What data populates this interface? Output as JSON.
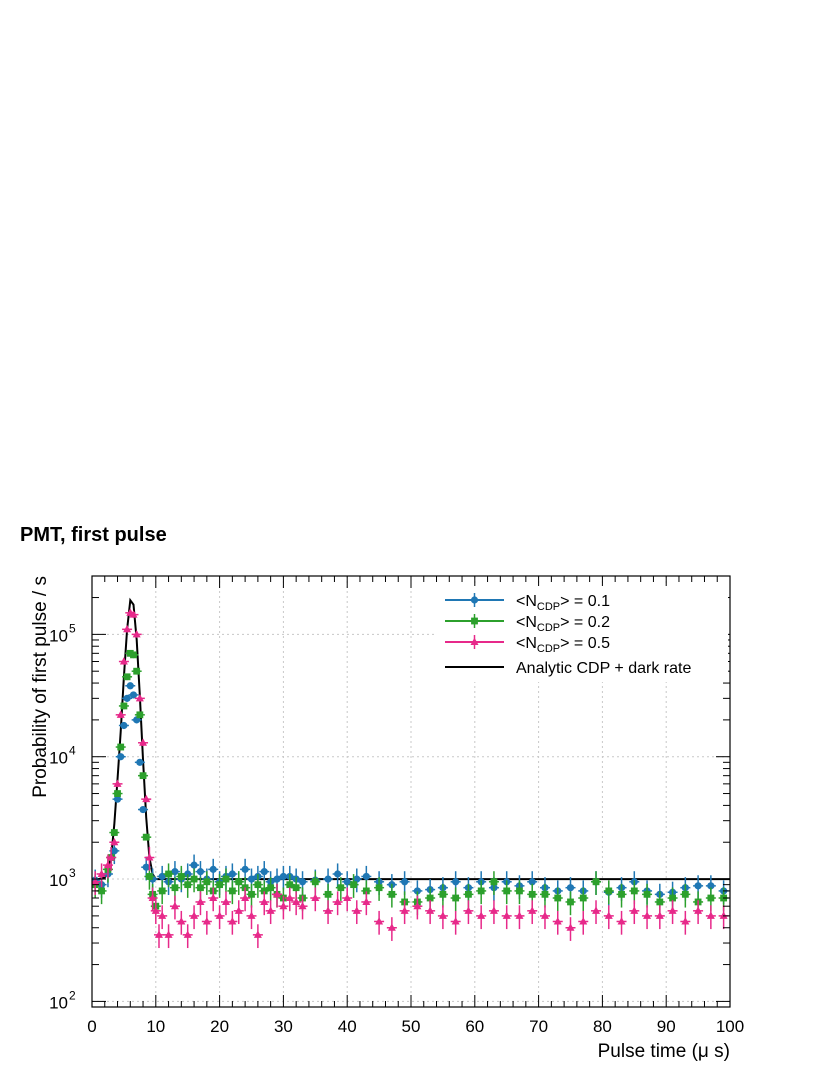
{
  "title": "PMT, first pulse",
  "chart_data": {
    "type": "scatter",
    "xlabel": "Pulse time (μ s)",
    "ylabel": "Probability of first pulse / s",
    "xlim": [
      0,
      100
    ],
    "ylim": [
      90,
      300000
    ],
    "yscale": "log",
    "x_ticks": [
      "0",
      "10",
      "20",
      "30",
      "40",
      "50",
      "60",
      "70",
      "80",
      "90",
      "100"
    ],
    "y_ticks": [
      {
        "base": "10",
        "exp": "2",
        "value": 100
      },
      {
        "base": "10",
        "exp": "3",
        "value": 1000
      },
      {
        "base": "10",
        "exp": "4",
        "value": 10000
      },
      {
        "base": "10",
        "exp": "5",
        "value": 100000
      }
    ],
    "grid": true,
    "legend_position": "top-right",
    "series": [
      {
        "legend_prefix": "<N",
        "legend_sub": "CDP",
        "legend_suffix": "> = 0.1",
        "color": "#1f77b4",
        "marker": "circle",
        "points": [
          [
            0.5,
            980
          ],
          [
            1.5,
            900
          ],
          [
            2.5,
            1100
          ],
          [
            3.5,
            1700
          ],
          [
            4.0,
            4500
          ],
          [
            4.5,
            10000
          ],
          [
            5.0,
            18000
          ],
          [
            5.5,
            30000
          ],
          [
            6.0,
            38000
          ],
          [
            6.5,
            32000
          ],
          [
            7.0,
            20000
          ],
          [
            7.5,
            9000
          ],
          [
            8.0,
            3700
          ],
          [
            8.5,
            1250
          ],
          [
            9.5,
            1000
          ],
          [
            11.0,
            1050
          ],
          [
            12.0,
            950
          ],
          [
            13.0,
            1150
          ],
          [
            14.0,
            1000
          ],
          [
            15.0,
            1100
          ],
          [
            16.0,
            1300
          ],
          [
            17.0,
            1150
          ],
          [
            18.0,
            1000
          ],
          [
            19.0,
            1200
          ],
          [
            20.0,
            950
          ],
          [
            21.0,
            1050
          ],
          [
            22.0,
            1100
          ],
          [
            23.0,
            950
          ],
          [
            24.0,
            1200
          ],
          [
            25.0,
            1000
          ],
          [
            26.0,
            1050
          ],
          [
            27.0,
            1150
          ],
          [
            28.0,
            950
          ],
          [
            29.0,
            1000
          ],
          [
            30.0,
            1050
          ],
          [
            31.0,
            1050
          ],
          [
            32.0,
            1000
          ],
          [
            33.0,
            950
          ],
          [
            35.0,
            980
          ],
          [
            37.0,
            1000
          ],
          [
            38.5,
            1100
          ],
          [
            40.0,
            950
          ],
          [
            41.5,
            1000
          ],
          [
            43.0,
            1050
          ],
          [
            45.0,
            950
          ],
          [
            47.0,
            900
          ],
          [
            49.0,
            950
          ],
          [
            51.0,
            800
          ],
          [
            53.0,
            820
          ],
          [
            55.0,
            850
          ],
          [
            57.0,
            950
          ],
          [
            59.0,
            850
          ],
          [
            61.0,
            950
          ],
          [
            63.0,
            850
          ],
          [
            65.0,
            950
          ],
          [
            67.0,
            880
          ],
          [
            69.0,
            950
          ],
          [
            71.0,
            850
          ],
          [
            73.0,
            800
          ],
          [
            75.0,
            850
          ],
          [
            77.0,
            800
          ],
          [
            79.0,
            950
          ],
          [
            81.0,
            780
          ],
          [
            83.0,
            850
          ],
          [
            85.0,
            950
          ],
          [
            87.0,
            800
          ],
          [
            89.0,
            750
          ],
          [
            91.0,
            780
          ],
          [
            93.0,
            850
          ],
          [
            95.0,
            880
          ],
          [
            97.0,
            880
          ],
          [
            99.0,
            800
          ]
        ]
      },
      {
        "legend_prefix": "<N",
        "legend_sub": "CDP",
        "legend_suffix": "> = 0.2",
        "color": "#2ca02c",
        "marker": "square",
        "points": [
          [
            0.5,
            900
          ],
          [
            1.5,
            800
          ],
          [
            2.5,
            1200
          ],
          [
            3.0,
            1500
          ],
          [
            3.5,
            2400
          ],
          [
            4.0,
            5000
          ],
          [
            4.5,
            12000
          ],
          [
            5.0,
            26000
          ],
          [
            5.5,
            45000
          ],
          [
            6.0,
            70000
          ],
          [
            6.5,
            68000
          ],
          [
            7.0,
            50000
          ],
          [
            7.5,
            22000
          ],
          [
            8.0,
            7000
          ],
          [
            8.5,
            2200
          ],
          [
            9.0,
            1050
          ],
          [
            9.5,
            750
          ],
          [
            10.0,
            600
          ],
          [
            11.0,
            800
          ],
          [
            12.0,
            1100
          ],
          [
            13.0,
            850
          ],
          [
            14.0,
            1050
          ],
          [
            15.0,
            900
          ],
          [
            16.0,
            1000
          ],
          [
            17.0,
            850
          ],
          [
            18.0,
            950
          ],
          [
            19.0,
            800
          ],
          [
            20.0,
            900
          ],
          [
            21.0,
            1000
          ],
          [
            22.0,
            800
          ],
          [
            23.0,
            950
          ],
          [
            24.0,
            850
          ],
          [
            25.0,
            750
          ],
          [
            26.0,
            900
          ],
          [
            27.0,
            800
          ],
          [
            28.0,
            850
          ],
          [
            29.0,
            750
          ],
          [
            30.0,
            700
          ],
          [
            31.0,
            900
          ],
          [
            32.0,
            850
          ],
          [
            33.0,
            700
          ],
          [
            35.0,
            950
          ],
          [
            37.0,
            750
          ],
          [
            39.0,
            850
          ],
          [
            41.0,
            900
          ],
          [
            43.0,
            800
          ],
          [
            45.0,
            850
          ],
          [
            47.0,
            750
          ],
          [
            49.0,
            650
          ],
          [
            51.0,
            650
          ],
          [
            53.0,
            700
          ],
          [
            55.0,
            750
          ],
          [
            57.0,
            700
          ],
          [
            59.0,
            750
          ],
          [
            61.0,
            800
          ],
          [
            63.0,
            950
          ],
          [
            65.0,
            800
          ],
          [
            67.0,
            800
          ],
          [
            69.0,
            750
          ],
          [
            71.0,
            750
          ],
          [
            73.0,
            700
          ],
          [
            75.0,
            650
          ],
          [
            77.0,
            700
          ],
          [
            79.0,
            950
          ],
          [
            81.0,
            800
          ],
          [
            83.0,
            750
          ],
          [
            85.0,
            800
          ],
          [
            87.0,
            750
          ],
          [
            89.0,
            650
          ],
          [
            91.0,
            700
          ],
          [
            93.0,
            750
          ],
          [
            95.0,
            650
          ],
          [
            97.0,
            700
          ],
          [
            99.0,
            700
          ]
        ]
      },
      {
        "legend_prefix": "<N",
        "legend_sub": "CDP",
        "legend_suffix": "> = 0.5",
        "color": "#e7298a",
        "marker": "triangle",
        "points": [
          [
            0.5,
            950
          ],
          [
            1.5,
            1100
          ],
          [
            2.5,
            1300
          ],
          [
            3.0,
            1500
          ],
          [
            3.5,
            2000
          ],
          [
            4.0,
            6000
          ],
          [
            4.5,
            22000
          ],
          [
            5.0,
            60000
          ],
          [
            5.5,
            110000
          ],
          [
            6.0,
            150000
          ],
          [
            6.5,
            145000
          ],
          [
            7.0,
            100000
          ],
          [
            7.5,
            30000
          ],
          [
            8.0,
            13000
          ],
          [
            8.5,
            4500
          ],
          [
            9.0,
            1500
          ],
          [
            9.5,
            700
          ],
          [
            10.0,
            550
          ],
          [
            10.5,
            350
          ],
          [
            11.0,
            500
          ],
          [
            12.0,
            350
          ],
          [
            13.0,
            600
          ],
          [
            14.0,
            450
          ],
          [
            15.0,
            350
          ],
          [
            16.0,
            500
          ],
          [
            17.0,
            650
          ],
          [
            18.0,
            450
          ],
          [
            19.0,
            700
          ],
          [
            20.0,
            500
          ],
          [
            21.0,
            650
          ],
          [
            22.0,
            450
          ],
          [
            23.0,
            550
          ],
          [
            24.0,
            700
          ],
          [
            25.0,
            500
          ],
          [
            26.0,
            350
          ],
          [
            27.0,
            650
          ],
          [
            28.0,
            550
          ],
          [
            29.0,
            750
          ],
          [
            30.0,
            600
          ],
          [
            31.0,
            700
          ],
          [
            32.0,
            650
          ],
          [
            33.0,
            600
          ],
          [
            35.0,
            700
          ],
          [
            37.0,
            550
          ],
          [
            38.5,
            650
          ],
          [
            40.0,
            700
          ],
          [
            41.5,
            550
          ],
          [
            43.0,
            650
          ],
          [
            45.0,
            450
          ],
          [
            47.0,
            400
          ],
          [
            49.0,
            550
          ],
          [
            51.0,
            600
          ],
          [
            53.0,
            550
          ],
          [
            55.0,
            500
          ],
          [
            57.0,
            450
          ],
          [
            59.0,
            550
          ],
          [
            61.0,
            500
          ],
          [
            63.0,
            550
          ],
          [
            65.0,
            500
          ],
          [
            67.0,
            500
          ],
          [
            69.0,
            550
          ],
          [
            71.0,
            500
          ],
          [
            73.0,
            450
          ],
          [
            75.0,
            400
          ],
          [
            77.0,
            450
          ],
          [
            79.0,
            550
          ],
          [
            81.0,
            500
          ],
          [
            83.0,
            450
          ],
          [
            85.0,
            550
          ],
          [
            87.0,
            500
          ],
          [
            89.0,
            500
          ],
          [
            91.0,
            550
          ],
          [
            93.0,
            450
          ],
          [
            95.0,
            550
          ],
          [
            97.0,
            500
          ],
          [
            99.0,
            500
          ]
        ]
      },
      {
        "name": "Analytic CDP + dark rate",
        "color": "#000000",
        "marker": "line",
        "points": [
          [
            0,
            1000
          ],
          [
            1,
            1000
          ],
          [
            2,
            1030
          ],
          [
            3,
            1500
          ],
          [
            3.5,
            2800
          ],
          [
            4,
            6500
          ],
          [
            4.5,
            16000
          ],
          [
            5,
            45000
          ],
          [
            5.5,
            110000
          ],
          [
            6,
            190000
          ],
          [
            6.5,
            175000
          ],
          [
            7,
            90000
          ],
          [
            7.5,
            32000
          ],
          [
            8,
            9500
          ],
          [
            8.5,
            3200
          ],
          [
            9,
            1500
          ],
          [
            9.5,
            1100
          ],
          [
            10,
            1000
          ],
          [
            100,
            1000
          ]
        ]
      }
    ]
  }
}
